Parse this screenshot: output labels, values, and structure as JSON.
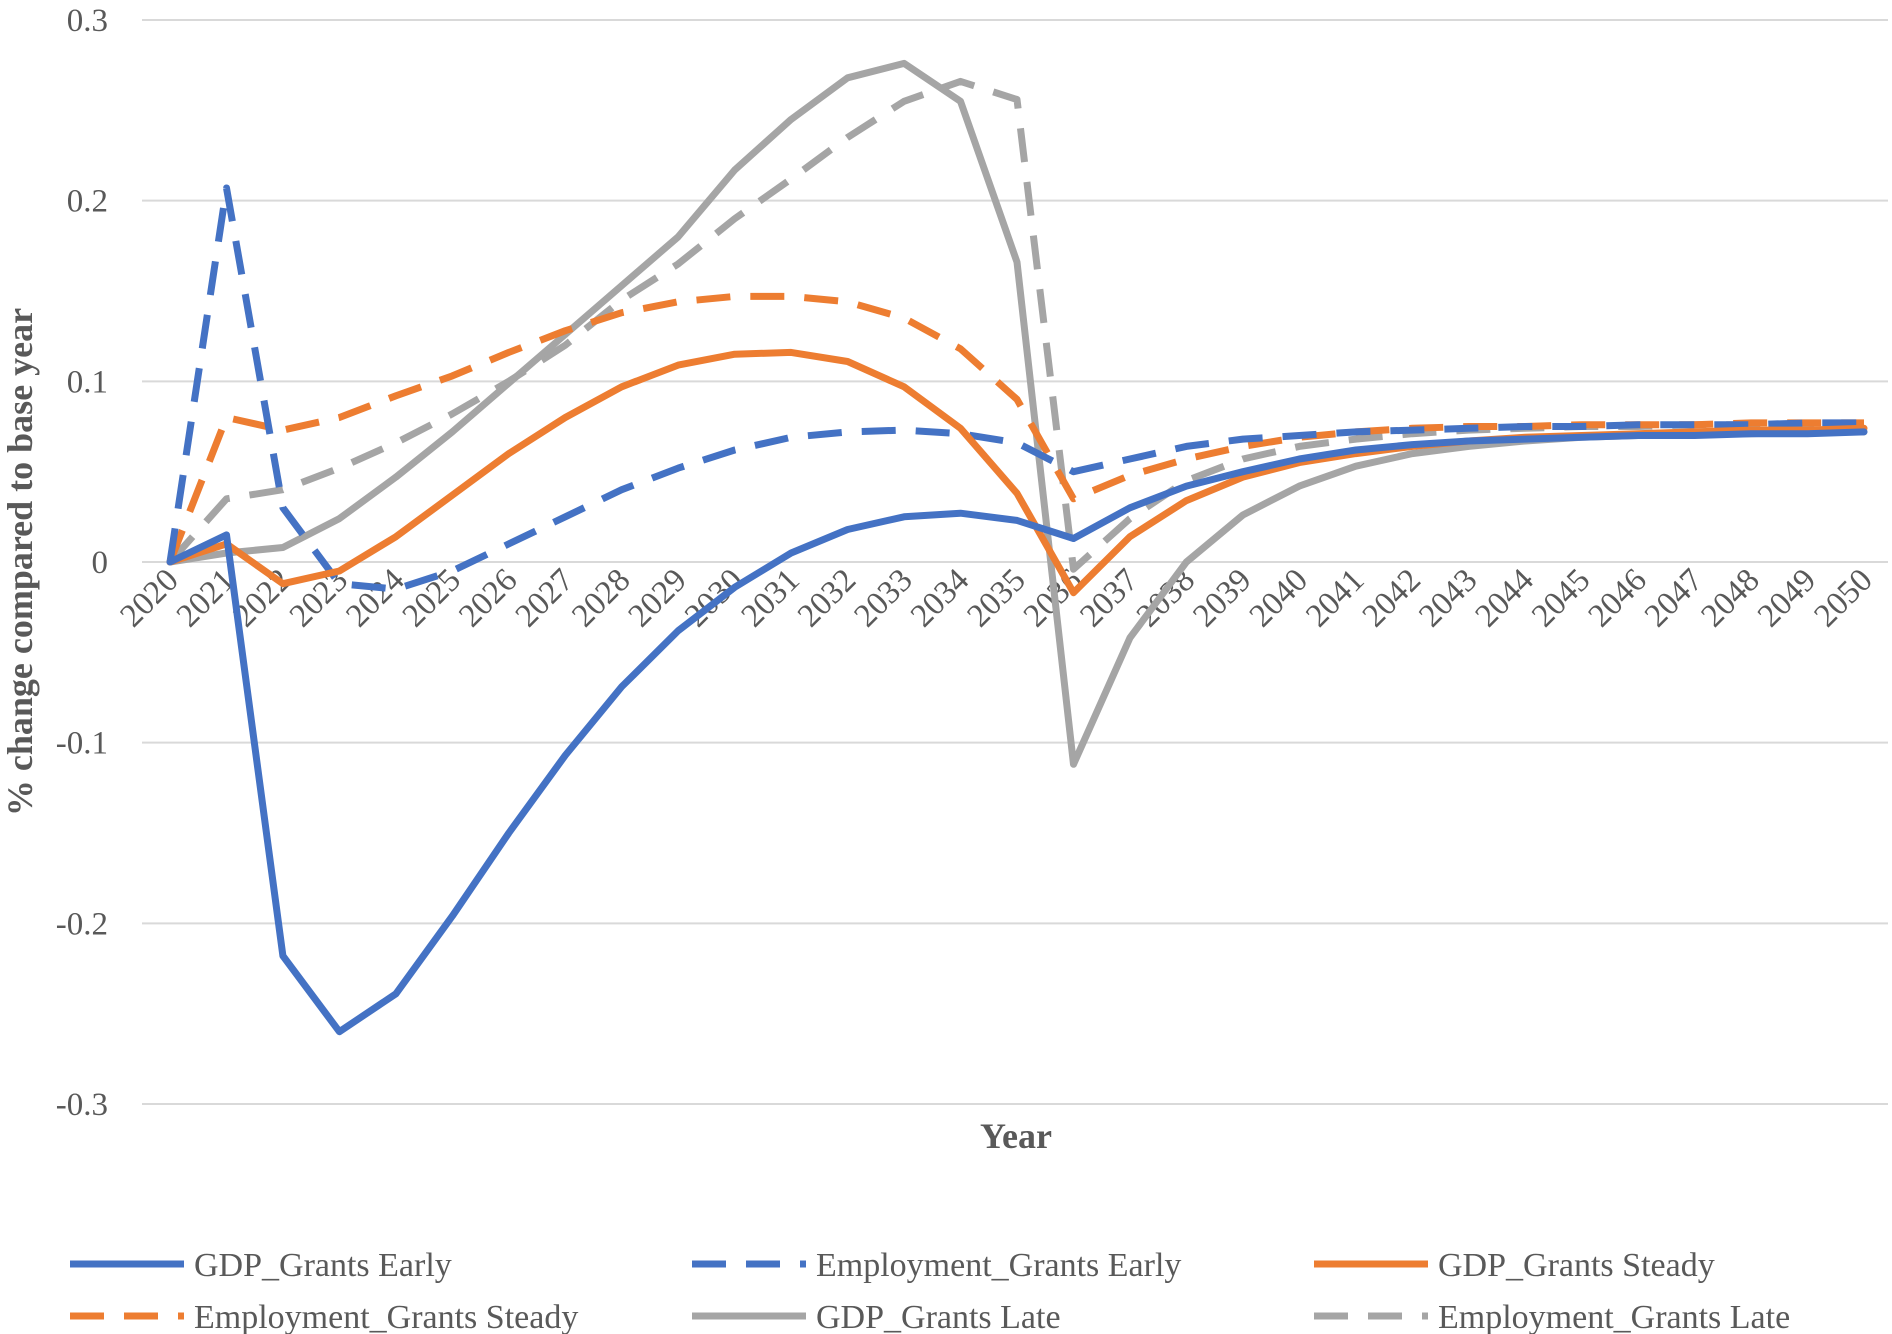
{
  "chart_data": {
    "type": "line",
    "title": "",
    "xlabel": "Year",
    "ylabel": "% change compared to base year",
    "ylim": [
      -0.3,
      0.3
    ],
    "yticks": [
      0.3,
      0.2,
      0.1,
      0,
      -0.1,
      -0.2,
      -0.3
    ],
    "ytick_labels": [
      "0.3",
      "0.2",
      "0.1",
      "0",
      "-0.1",
      "-0.2",
      "-0.3"
    ],
    "grid": "horizontal",
    "legend_position": "bottom",
    "x": [
      "2020",
      "2021",
      "2022",
      "2023",
      "2024",
      "2025",
      "2026",
      "2027",
      "2028",
      "2029",
      "2030",
      "2031",
      "2032",
      "2033",
      "2034",
      "2035",
      "2036",
      "2037",
      "2038",
      "2039",
      "2040",
      "2041",
      "2042",
      "2043",
      "2044",
      "2045",
      "2046",
      "2047",
      "2048",
      "2049",
      "2050"
    ],
    "series": [
      {
        "name": "GDP_Grants Early",
        "color": "#4472C4",
        "dash": "solid",
        "values": [
          0,
          0.015,
          -0.218,
          -0.26,
          -0.239,
          -0.196,
          -0.15,
          -0.107,
          -0.069,
          -0.038,
          -0.014,
          0.005,
          0.018,
          0.025,
          0.027,
          0.023,
          0.013,
          0.03,
          0.042,
          0.05,
          0.057,
          0.062,
          0.065,
          0.067,
          0.068,
          0.069,
          0.07,
          0.07,
          0.071,
          0.071,
          0.072
        ]
      },
      {
        "name": "Employment_Grants Early",
        "color": "#4472C4",
        "dash": "dashed",
        "values": [
          0,
          0.207,
          0.03,
          -0.012,
          -0.015,
          -0.005,
          0.01,
          0.025,
          0.04,
          0.052,
          0.062,
          0.069,
          0.072,
          0.073,
          0.071,
          0.066,
          0.05,
          0.057,
          0.064,
          0.068,
          0.07,
          0.072,
          0.073,
          0.074,
          0.075,
          0.075,
          0.076,
          0.076,
          0.076,
          0.077,
          0.077
        ]
      },
      {
        "name": "GDP_Grants Steady",
        "color": "#ED7D31",
        "dash": "solid",
        "values": [
          0,
          0.01,
          -0.012,
          -0.005,
          0.014,
          0.037,
          0.06,
          0.08,
          0.097,
          0.109,
          0.115,
          0.116,
          0.111,
          0.097,
          0.074,
          0.038,
          -0.017,
          0.014,
          0.034,
          0.047,
          0.055,
          0.06,
          0.064,
          0.067,
          0.069,
          0.07,
          0.071,
          0.072,
          0.073,
          0.073,
          0.074
        ]
      },
      {
        "name": "Employment_Grants Steady",
        "color": "#ED7D31",
        "dash": "dashed",
        "values": [
          0,
          0.08,
          0.073,
          0.08,
          0.092,
          0.103,
          0.116,
          0.128,
          0.138,
          0.144,
          0.147,
          0.147,
          0.144,
          0.135,
          0.118,
          0.09,
          0.035,
          0.048,
          0.057,
          0.064,
          0.069,
          0.072,
          0.074,
          0.075,
          0.075,
          0.076,
          0.076,
          0.076,
          0.077,
          0.077,
          0.077
        ]
      },
      {
        "name": "GDP_Grants Late",
        "color": "#A5A5A5",
        "dash": "solid",
        "values": [
          0,
          0.005,
          0.008,
          0.024,
          0.047,
          0.072,
          0.099,
          0.126,
          0.153,
          0.18,
          0.217,
          0.245,
          0.268,
          0.276,
          0.255,
          0.166,
          -0.112,
          -0.042,
          0,
          0.026,
          0.042,
          0.053,
          0.06,
          0.064,
          0.067,
          0.069,
          0.07,
          0.071,
          0.071,
          0.072,
          0.072
        ]
      },
      {
        "name": "Employment_Grants Late",
        "color": "#A5A5A5",
        "dash": "dashed",
        "values": [
          0,
          0.035,
          0.04,
          0.052,
          0.066,
          0.082,
          0.1,
          0.12,
          0.145,
          0.165,
          0.19,
          0.212,
          0.235,
          0.255,
          0.266,
          0.256,
          -0.004,
          0.024,
          0.045,
          0.057,
          0.064,
          0.068,
          0.071,
          0.073,
          0.074,
          0.075,
          0.075,
          0.076,
          0.076,
          0.076,
          0.076
        ]
      }
    ]
  }
}
